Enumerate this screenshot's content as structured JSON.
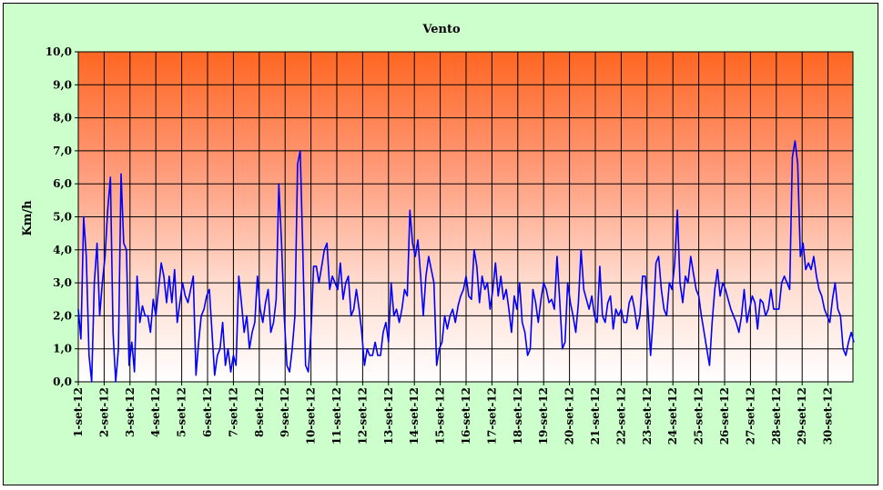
{
  "chart_data": {
    "type": "line",
    "title": "Vento",
    "ylabel": "Km/h",
    "xlabel": "",
    "ylim": [
      0,
      10
    ],
    "yticks": [
      "0,0",
      "1,0",
      "2,0",
      "3,0",
      "4,0",
      "5,0",
      "6,0",
      "7,0",
      "8,0",
      "9,0",
      "10,0"
    ],
    "x_categories": [
      "1-set-12",
      "2-set-12",
      "3-set-12",
      "4-set-12",
      "5-set-12",
      "6-set-12",
      "7-set-12",
      "8-set-12",
      "9-set-12",
      "10-set-12",
      "11-set-12",
      "12-set-12",
      "13-set-12",
      "14-set-12",
      "15-set-12",
      "16-set-12",
      "17-set-12",
      "18-set-12",
      "19-set-12",
      "20-set-12",
      "21-set-12",
      "22-set-12",
      "23-set-12",
      "24-set-12",
      "25-set-12",
      "26-set-12",
      "27-set-12",
      "28-set-12",
      "29-set-12",
      "30-set-12"
    ],
    "grid": true,
    "colors": {
      "series": "#0000ff",
      "plot_top": "#ff6622",
      "plot_bottom": "#ffffff",
      "background": "#ccffcc"
    },
    "series": [
      {
        "name": "",
        "values": [
          2.2,
          1.3,
          5.0,
          3.8,
          0.8,
          0.0,
          3.0,
          4.2,
          2.0,
          3.0,
          3.8,
          5.2,
          6.2,
          1.5,
          0.0,
          1.0,
          6.3,
          4.2,
          4.0,
          0.5,
          1.2,
          0.3,
          3.2,
          1.8,
          2.3,
          2.0,
          2.0,
          1.5,
          2.5,
          2.0,
          2.8,
          3.6,
          3.2,
          2.4,
          3.2,
          2.4,
          3.4,
          1.8,
          2.4,
          3.0,
          2.6,
          2.4,
          2.8,
          3.2,
          0.2,
          1.2,
          2.0,
          2.2,
          2.6,
          2.8,
          1.5,
          0.2,
          0.8,
          1.0,
          1.8,
          0.5,
          1.0,
          0.3,
          0.8,
          0.5,
          3.2,
          2.4,
          1.5,
          2.0,
          1.0,
          1.5,
          1.8,
          3.2,
          2.2,
          1.8,
          2.4,
          2.8,
          1.5,
          1.8,
          2.5,
          6.0,
          4.2,
          2.0,
          0.5,
          0.3,
          1.0,
          2.0,
          6.6,
          7.0,
          3.8,
          0.5,
          0.3,
          1.5,
          3.5,
          3.5,
          3.0,
          3.5,
          4.0,
          4.2,
          2.8,
          3.2,
          3.0,
          2.8,
          3.6,
          2.5,
          3.0,
          3.2,
          2.0,
          2.2,
          2.8,
          2.2,
          1.5,
          0.5,
          1.0,
          0.8,
          0.8,
          1.2,
          0.8,
          0.8,
          1.5,
          1.8,
          1.2,
          3.0,
          2.0,
          2.2,
          1.8,
          2.2,
          2.8,
          2.6,
          5.2,
          4.2,
          3.8,
          4.3,
          3.2,
          2.0,
          3.2,
          3.8,
          3.4,
          3.0,
          0.5,
          1.0,
          1.2,
          2.0,
          1.6,
          2.0,
          2.2,
          1.8,
          2.3,
          2.6,
          2.8,
          3.2,
          2.6,
          2.5,
          4.0,
          3.5,
          2.4,
          3.2,
          2.8,
          3.0,
          2.2,
          2.8,
          3.6,
          2.6,
          3.2,
          2.5,
          2.8,
          2.2,
          1.5,
          2.6,
          2.2,
          3.0,
          1.8,
          1.5,
          0.8,
          1.0,
          2.8,
          2.4,
          1.8,
          2.5,
          3.0,
          2.8,
          2.4,
          2.5,
          2.2,
          3.8,
          2.5,
          1.0,
          1.2,
          3.0,
          2.4,
          2.0,
          1.5,
          2.4,
          4.0,
          2.8,
          2.5,
          2.2,
          2.6,
          2.0,
          1.8,
          3.5,
          2.0,
          1.8,
          2.4,
          2.6,
          1.6,
          2.2,
          2.0,
          2.2,
          1.8,
          1.8,
          2.4,
          2.6,
          2.2,
          1.6,
          2.0,
          3.2,
          3.2,
          2.2,
          0.8,
          2.0,
          3.6,
          3.8,
          2.8,
          2.2,
          2.0,
          3.0,
          2.8,
          3.6,
          5.2,
          3.0,
          2.4,
          3.2,
          3.0,
          3.8,
          3.3,
          2.8,
          2.6,
          2.0,
          1.5,
          1.0,
          0.5,
          1.8,
          2.8,
          3.4,
          2.6,
          3.0,
          2.8,
          2.5,
          2.2,
          2.0,
          1.8,
          1.5,
          2.0,
          2.8,
          1.8,
          2.2,
          2.6,
          2.4,
          1.6,
          2.5,
          2.4,
          2.0,
          2.2,
          2.8,
          2.2,
          2.2,
          2.2,
          3.0,
          3.2,
          3.0,
          2.8,
          6.8,
          7.3,
          6.6,
          3.8,
          4.2,
          3.4,
          3.6,
          3.4,
          3.8,
          3.2,
          2.8,
          2.6,
          2.2,
          2.0,
          1.8,
          2.5,
          3.0,
          2.2,
          2.0,
          1.0,
          0.8,
          1.2,
          1.5,
          1.2
        ],
        "x_start": 0,
        "x_end": 30
      }
    ]
  }
}
